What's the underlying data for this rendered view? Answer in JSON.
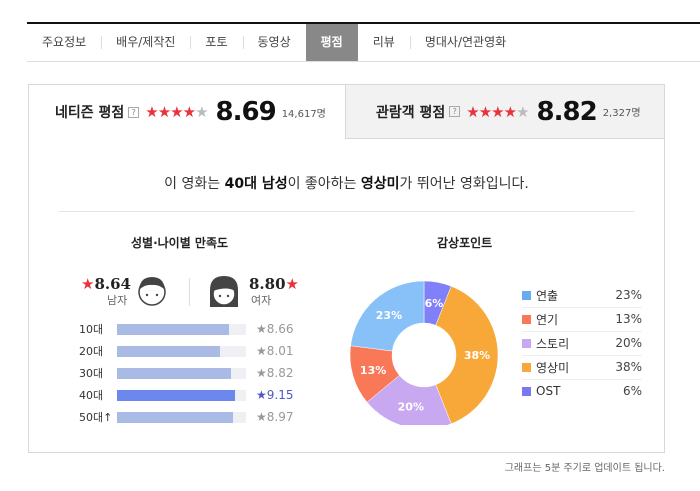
{
  "tabs": [
    {
      "label": "주요정보"
    },
    {
      "label": "배우/제작진"
    },
    {
      "label": "포토"
    },
    {
      "label": "동영상"
    },
    {
      "label": "평점",
      "active": true
    },
    {
      "label": "리뷰"
    },
    {
      "label": "명대사/연관영화"
    }
  ],
  "netizen": {
    "label": "네티즌 평점",
    "help": "?",
    "score": "8.69",
    "count": "14,617명",
    "stars": 4.35
  },
  "audience": {
    "label": "관람객 평점",
    "help": "?",
    "score": "8.82",
    "count": "2,327명",
    "stars": 4.41
  },
  "headline": {
    "pre": "이 영화는 ",
    "group": "40대 남성",
    "mid": "이 좋아하는 ",
    "point": "영상미",
    "post": "가 뛰어난 영화입니다."
  },
  "gender_age": {
    "title": "성별·나이별 만족도",
    "male": {
      "score": "8.64",
      "label": "남자"
    },
    "female": {
      "score": "8.80",
      "label": "여자"
    },
    "ages": [
      {
        "label": "10대",
        "score": "8.66",
        "value": 8.66
      },
      {
        "label": "20대",
        "score": "8.01",
        "value": 8.01
      },
      {
        "label": "30대",
        "score": "8.82",
        "value": 8.82
      },
      {
        "label": "40대",
        "score": "9.15",
        "value": 9.15,
        "highlight": true
      },
      {
        "label": "50대↑",
        "score": "8.97",
        "value": 8.97
      }
    ]
  },
  "chart_data": {
    "type": "pie",
    "title": "감상포인트",
    "donut": true,
    "legend_order": [
      "연출",
      "연기",
      "스토리",
      "영상미",
      "OST"
    ],
    "slices": [
      {
        "name": "OST",
        "value": 6,
        "label": "6%",
        "color": "#8080f8"
      },
      {
        "name": "영상미",
        "value": 38,
        "label": "38%",
        "color": "#f8a838"
      },
      {
        "name": "스토리",
        "value": 20,
        "label": "20%",
        "color": "#c8a8f0"
      },
      {
        "name": "연기",
        "value": 13,
        "label": "13%",
        "color": "#f87858"
      },
      {
        "name": "연출",
        "value": 23,
        "label": "23%",
        "color": "#88c0f8"
      }
    ],
    "legend": [
      {
        "name": "연출",
        "pct": "23%",
        "color": "#6aaaf0"
      },
      {
        "name": "연기",
        "pct": "13%",
        "color": "#f87858"
      },
      {
        "name": "스토리",
        "pct": "20%",
        "color": "#c8a8f0"
      },
      {
        "name": "영상미",
        "pct": "38%",
        "color": "#f8a838"
      },
      {
        "name": "OST",
        "pct": "6%",
        "color": "#7878f0"
      }
    ],
    "legend_placement": "right"
  },
  "footer": "그래프는 5분 주기로 업데이트 됩니다."
}
